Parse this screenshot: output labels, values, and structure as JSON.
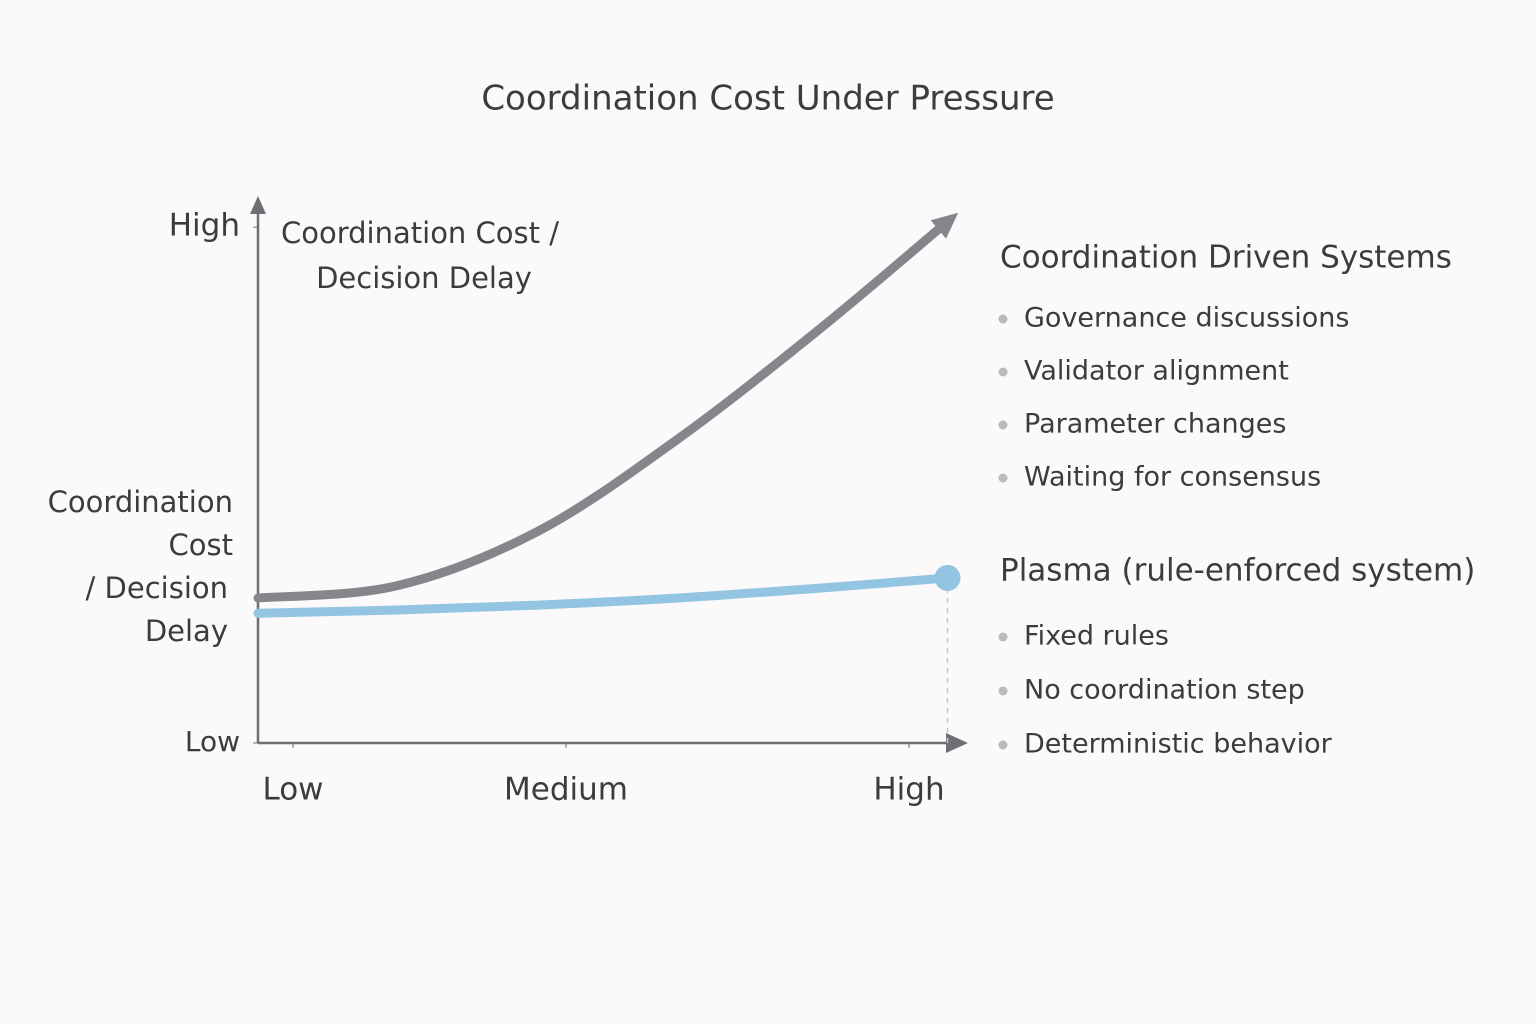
{
  "chart_data": {
    "type": "line",
    "title": "Coordination Cost Under Pressure",
    "ylabel": [
      "Coordination Cost /",
      "Decision Delay"
    ],
    "ylabel_side": [
      "Coordination",
      "Cost",
      "/ Decision",
      "Delay"
    ],
    "x": [
      0,
      2,
      4,
      6,
      8,
      9.85
    ],
    "xlim": [
      0,
      10
    ],
    "xticks": [
      {
        "value": 0.5,
        "label": "Low"
      },
      {
        "value": 4.4,
        "label": "Medium"
      },
      {
        "value": 9.3,
        "label": "High"
      }
    ],
    "ylim": [
      0,
      10
    ],
    "yticks": [
      {
        "value": 0,
        "label": "Low"
      },
      {
        "value": 9.5,
        "label": "High"
      }
    ],
    "series": [
      {
        "name": "Coordination Driven Systems",
        "color": "#86858b",
        "values": [
          2.67,
          2.9,
          3.9,
          5.6,
          7.6,
          9.6
        ],
        "bullets": [
          "Governance discussions",
          "Validator alignment",
          "Parameter changes",
          "Waiting for consensus"
        ]
      },
      {
        "name": "Plasma (rule-enforced system)",
        "color": "#93c5e2",
        "values": [
          2.39,
          2.45,
          2.54,
          2.67,
          2.85,
          3.04
        ],
        "bullets": [
          "Fixed rules",
          "No coordination step",
          "Deterministic behavior"
        ]
      }
    ]
  }
}
